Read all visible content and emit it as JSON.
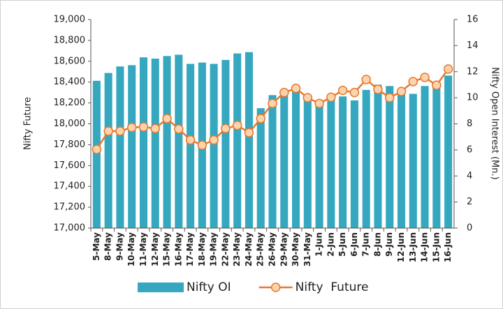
{
  "chart_data": {
    "type": "bar-line",
    "categories": [
      "5-May",
      "8-May",
      "9-May",
      "10-May",
      "11-May",
      "12-May",
      "15-May",
      "16-May",
      "17-May",
      "18-May",
      "19-May",
      "22-May",
      "23-May",
      "24-May",
      "25-May",
      "26-May",
      "29-May",
      "30-May",
      "31-May",
      "1-Jun",
      "2-Jun",
      "5-Jun",
      "6-Jun",
      "7-Jun",
      "8-Jun",
      "9-Jun",
      "12-Jun",
      "13-Jun",
      "14-Jun",
      "15-Jun",
      "16-Jun"
    ],
    "y_label": "Nifty Future",
    "y2_label": "Nifty Open Interest (Mn.)",
    "ylim": [
      17000,
      19000
    ],
    "yticks": [
      {
        "value": 17000,
        "label": "17,000"
      },
      {
        "value": 17200,
        "label": "17,200"
      },
      {
        "value": 17400,
        "label": "17,400"
      },
      {
        "value": 17600,
        "label": "17,600"
      },
      {
        "value": 17800,
        "label": "17,800"
      },
      {
        "value": 18000,
        "label": "18,000"
      },
      {
        "value": 18200,
        "label": "18,200"
      },
      {
        "value": 18400,
        "label": "18,400"
      },
      {
        "value": 18600,
        "label": "18,600"
      },
      {
        "value": 18800,
        "label": "18,800"
      },
      {
        "value": 19000,
        "label": "19,000"
      }
    ],
    "y2lim": [
      0,
      16
    ],
    "y2ticks": [
      0,
      2,
      4,
      6,
      8,
      10,
      12,
      14,
      16
    ],
    "legend": "bottom",
    "series": [
      {
        "name": "Nifty OI",
        "type": "bar",
        "axis": "y2",
        "color": "#35a8c0",
        "values": [
          11.3,
          11.9,
          12.4,
          12.5,
          13.1,
          13.0,
          13.2,
          13.3,
          12.6,
          12.7,
          12.6,
          12.9,
          13.4,
          13.5,
          9.2,
          10.2,
          10.3,
          10.8,
          10.2,
          9.8,
          10.0,
          10.1,
          9.8,
          10.6,
          11.0,
          10.9,
          10.4,
          10.3,
          10.9,
          11.2,
          11.7
        ]
      },
      {
        "name": "Nifty  Future",
        "type": "line",
        "axis": "y",
        "color": "#e8792a",
        "values": [
          17755,
          17930,
          17930,
          17965,
          17970,
          17955,
          18050,
          17950,
          17845,
          17795,
          17845,
          17955,
          17985,
          17915,
          18050,
          18195,
          18300,
          18340,
          18250,
          18195,
          18255,
          18320,
          18300,
          18425,
          18330,
          18250,
          18310,
          18405,
          18445,
          18370,
          18525
        ]
      }
    ]
  }
}
